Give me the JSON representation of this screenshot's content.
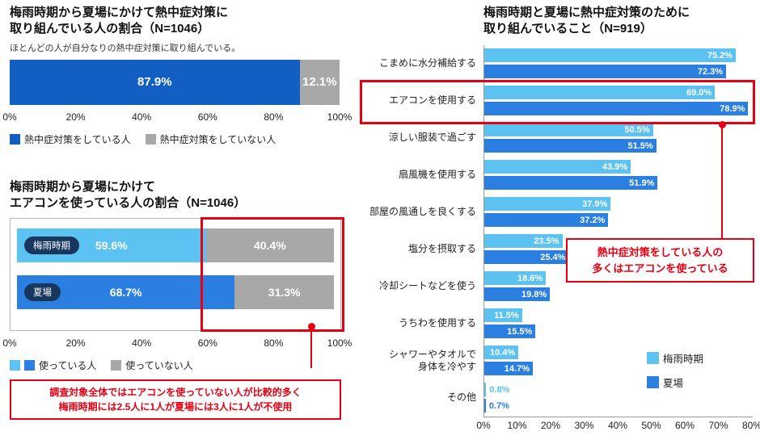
{
  "colors": {
    "dark_blue": "#135ec2",
    "mid_blue": "#2b7fe0",
    "light_blue": "#5cc2f2",
    "gray": "#a8a8a8",
    "navy": "#17375e",
    "red": "#e60012"
  },
  "chart_data": [
    {
      "id": "overall-measures",
      "type": "stacked-bar",
      "title_lines": [
        "梅雨時期から夏場にかけて熱中症対策に",
        "取り組んでいる人の割合（N=1046）"
      ],
      "subtitle": "ほとんどの人が自分なりの熱中症対策に取り組んでいる。",
      "segments": [
        {
          "label": "熱中症対策をしている人",
          "value": 87.9,
          "color": "dark_blue"
        },
        {
          "label": "熱中症対策をしていない人",
          "value": 12.1,
          "color": "gray"
        }
      ],
      "xlim": [
        0,
        100
      ],
      "ticks": [
        "0%",
        "20%",
        "40%",
        "60%",
        "80%",
        "100%"
      ],
      "legend": [
        {
          "label": "熱中症対策をしている人",
          "colors": [
            "dark_blue"
          ]
        },
        {
          "label": "熱中症対策をしていない人",
          "colors": [
            "gray"
          ]
        }
      ]
    },
    {
      "id": "aircon-usage",
      "type": "stacked-bar",
      "title_lines": [
        "梅雨時期から夏場にかけて",
        "エアコンを使っている人の割合（N=1046）"
      ],
      "rows": [
        {
          "category": "梅雨時期",
          "using": 59.6,
          "not_using": 40.4,
          "color": "light_blue"
        },
        {
          "category": "夏場",
          "using": 68.7,
          "not_using": 31.3,
          "color": "mid_blue"
        }
      ],
      "xlim": [
        0,
        100
      ],
      "ticks": [
        "0%",
        "20%",
        "40%",
        "60%",
        "80%",
        "100%"
      ],
      "legend": [
        {
          "label": "使っている人",
          "colors": [
            "light_blue",
            "mid_blue"
          ]
        },
        {
          "label": "使っていない人",
          "colors": [
            "gray"
          ]
        }
      ],
      "annotation_lines": [
        "調査対象全体ではエアコンを使っていない人が比較的多く",
        "梅雨時期には2.5人に1人が夏場には3人に1人が不使用"
      ]
    },
    {
      "id": "measures-by-season",
      "type": "bar",
      "title_lines": [
        "梅雨時期と夏場に熱中症対策のために",
        "取り組んでいること（N=919）"
      ],
      "categories": [
        "こまめに水分補給する",
        "エアコンを使用する",
        "涼しい服装で過ごす",
        "扇風機を使用する",
        "部屋の風通しを良くする",
        "塩分を摂取する",
        "冷却シートなどを使う",
        "うちわを使用する",
        "シャワーやタオルで\n身体を冷やす",
        "その他"
      ],
      "series": [
        {
          "name": "梅雨時期",
          "color": "light_blue",
          "values": [
            75.2,
            69.0,
            50.5,
            43.9,
            37.9,
            23.5,
            18.6,
            11.5,
            10.4,
            0.8
          ]
        },
        {
          "name": "夏場",
          "color": "mid_blue",
          "values": [
            72.3,
            78.9,
            51.5,
            51.9,
            37.2,
            25.4,
            19.8,
            15.5,
            14.7,
            0.7
          ]
        }
      ],
      "xlim": [
        0,
        80
      ],
      "ticks": [
        "0%",
        "10%",
        "20%",
        "30%",
        "40%",
        "50%",
        "60%",
        "70%",
        "80%"
      ],
      "highlight_category_index": 1,
      "annotation_lines": [
        "熱中症対策をしている人の",
        "多くはエアコンを使っている"
      ]
    }
  ]
}
